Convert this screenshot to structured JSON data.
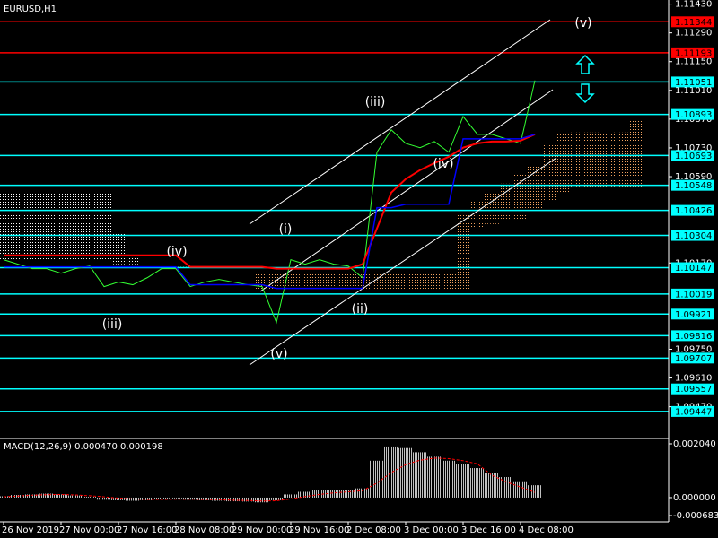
{
  "chart_data": [
    {
      "type": "line",
      "title": "EURUSD,H1",
      "categories": [
        "26 Nov 2019",
        null,
        null,
        null,
        "27 Nov 00:00",
        null,
        null,
        null,
        "27 Nov 16:00",
        null,
        null,
        null,
        "28 Nov 08:00",
        null,
        null,
        null,
        "29 Nov 00:00",
        null,
        null,
        null,
        "29 Nov 16:00",
        null,
        null,
        null,
        "2 Dec 08:00",
        null,
        null,
        null,
        "3 Dec 00:00",
        null,
        null,
        null,
        "3 Dec 16:00",
        null,
        null,
        null,
        "4 Dec 08:00",
        null,
        null,
        null,
        null,
        null,
        null,
        null,
        null
      ],
      "ylim": [
        1.0932,
        1.1145
      ],
      "yticks": [
        {
          "value": 1.1143,
          "label": "1.11430"
        },
        {
          "value": 1.1129,
          "label": "1.11290"
        },
        {
          "value": 1.1115,
          "label": "1.11150"
        },
        {
          "value": 1.1101,
          "label": "1.11010"
        },
        {
          "value": 1.1087,
          "label": "1.10870"
        },
        {
          "value": 1.1073,
          "label": "1.10730"
        },
        {
          "value": 1.1059,
          "label": "1.10590"
        },
        {
          "value": 1.1017,
          "label": "1.10170"
        },
        {
          "value": 1.0975,
          "label": "1.09750"
        },
        {
          "value": 1.0961,
          "label": "1.09610"
        },
        {
          "value": 1.0947,
          "label": "1.09470"
        }
      ],
      "grid": false,
      "series": [
        {
          "color": "#33ff33",
          "width": 1,
          "values": [
            1.10186,
            1.10164,
            1.10142,
            1.10142,
            1.1012,
            1.10142,
            1.10155,
            1.10055,
            1.10077,
            1.10064,
            1.10098,
            1.10142,
            1.10142,
            1.10055,
            1.10077,
            1.1009,
            1.10077,
            1.10064,
            1.10055,
            1.0988,
            1.10186,
            1.10164,
            1.10186,
            1.10164,
            1.10155,
            1.10098,
            1.10709,
            1.10818,
            1.10752,
            1.10731,
            1.10761,
            1.10709,
            1.10883,
            1.10796,
            1.10796,
            1.10774,
            1.10752,
            1.11058,
            null,
            null,
            null,
            null,
            null,
            null,
            null
          ]
        },
        {
          "color": "#ff0000",
          "width": 2,
          "values": [
            1.10207,
            1.10207,
            1.10207,
            1.10207,
            1.10207,
            1.10207,
            1.10207,
            1.10207,
            1.10207,
            1.10207,
            1.10207,
            1.10207,
            1.10207,
            1.10151,
            1.10151,
            1.10151,
            1.10151,
            1.10151,
            1.10151,
            1.10142,
            1.10142,
            1.10142,
            1.10142,
            1.10142,
            1.10142,
            1.10164,
            1.10338,
            1.10513,
            1.10578,
            1.10622,
            1.10656,
            1.10687,
            1.10731,
            1.10752,
            1.10761,
            1.10761,
            1.10765,
            1.10796,
            null,
            null,
            null,
            null,
            null,
            null,
            null
          ]
        },
        {
          "color": "#0000ff",
          "width": 1.5,
          "values": [
            1.10151,
            1.10151,
            1.10151,
            1.10151,
            1.10151,
            1.10151,
            1.10151,
            1.10151,
            1.10151,
            1.10151,
            1.10151,
            1.10151,
            1.10151,
            1.10064,
            1.10064,
            1.10064,
            1.10064,
            1.10064,
            1.10064,
            1.10046,
            1.10046,
            1.10046,
            1.10046,
            1.10046,
            1.10046,
            1.10046,
            1.10439,
            1.10439,
            1.10456,
            1.10456,
            1.10456,
            1.10456,
            1.10774,
            1.10774,
            1.10774,
            1.10774,
            1.10774,
            1.10796,
            null,
            null,
            null,
            null,
            null,
            null,
            null
          ]
        }
      ],
      "cloud": {
        "up_color": "#ffffff",
        "down_color": "#f4a460",
        "span_a": [
          1.10513,
          1.10513,
          1.10513,
          1.10513,
          1.10513,
          1.10513,
          1.10513,
          1.10513,
          1.10316,
          1.10207,
          1.10151,
          1.10151,
          1.10151,
          1.10151,
          1.10151,
          1.10151,
          1.10151,
          1.10151,
          1.10033,
          1.10033,
          1.10033,
          1.10033,
          1.10033,
          1.10033,
          1.10033,
          1.10033,
          1.10033,
          1.10033,
          1.10033,
          1.10033,
          1.10033,
          1.10033,
          1.10033,
          1.10338,
          1.1036,
          1.10369,
          1.10382,
          1.10404,
          1.10469,
          1.10513,
          1.10534,
          1.10534,
          1.10534,
          1.10534,
          1.10534
        ],
        "span_b": [
          1.10186,
          1.10186,
          1.10186,
          1.10186,
          1.10186,
          1.10186,
          1.10186,
          1.10186,
          1.10164,
          1.10164,
          1.10142,
          1.10142,
          1.10142,
          1.10142,
          1.10142,
          1.10142,
          1.10142,
          1.10142,
          1.1012,
          1.1012,
          1.1012,
          1.1012,
          1.1012,
          1.1012,
          1.1012,
          1.1012,
          1.1012,
          1.1012,
          1.1012,
          1.1012,
          1.1012,
          1.1012,
          1.10404,
          1.10469,
          1.10513,
          1.10556,
          1.106,
          1.10643,
          1.10752,
          1.10796,
          1.10805,
          1.10805,
          1.10796,
          1.10805,
          1.10861
        ]
      },
      "levels": [
        {
          "value": 1.11344,
          "color": "#ff0000"
        },
        {
          "value": 1.11193,
          "color": "#ff0000"
        },
        {
          "value": 1.11051,
          "color": "#00ffff"
        },
        {
          "value": 1.10893,
          "color": "#00ffff"
        },
        {
          "value": 1.10693,
          "color": "#00ffff"
        },
        {
          "value": 1.10548,
          "color": "#00ffff"
        },
        {
          "value": 1.10426,
          "color": "#00ffff"
        },
        {
          "value": 1.10304,
          "color": "#00ffff"
        },
        {
          "value": 1.10147,
          "color": "#00ffff"
        },
        {
          "value": 1.10019,
          "color": "#00ffff"
        },
        {
          "value": 1.09921,
          "color": "#00ffff"
        },
        {
          "value": 1.09816,
          "color": "#00ffff"
        },
        {
          "value": 1.09707,
          "color": "#00ffff"
        },
        {
          "value": 1.09557,
          "color": "#00ffff"
        },
        {
          "value": 1.09447,
          "color": "#00ffff"
        }
      ],
      "annotations": [
        "(v)",
        "(iii)",
        "(iv)",
        "(i)",
        "(ii)",
        "(v)",
        "(iii)",
        "(iv)"
      ]
    },
    {
      "type": "bar",
      "label": "MACD(12,26,9) 0.000470 0.000198",
      "color": "#c0c0c0",
      "ylim": [
        -0.00092,
        0.00221
      ],
      "yticks": [
        {
          "value": 0.00204,
          "label": "0.002040"
        },
        {
          "value": 0,
          "label": "0.000000"
        },
        {
          "value": -0.000683,
          "label": "-0.000683"
        }
      ],
      "values": [
        5e-05,
        0.0001,
        0.00012,
        0.00015,
        0.00012,
        8e-05,
        3e-05,
        -8e-05,
        -0.0001,
        -0.00012,
        -0.0001,
        -5e-05,
        -3e-05,
        -8e-05,
        -0.0001,
        -0.00012,
        -0.00014,
        -0.00015,
        -0.00018,
        -0.0001,
        0.00012,
        0.00022,
        0.00028,
        0.0003,
        0.00028,
        0.00035,
        0.0014,
        0.00194,
        0.00188,
        0.00172,
        0.00155,
        0.0014,
        0.00128,
        0.00112,
        0.00095,
        0.00078,
        0.00062,
        0.00047
      ],
      "signal": {
        "color": "#ff0000",
        "values": [
          3e-05,
          6e-05,
          9e-05,
          0.00011,
          0.00012,
          0.0001,
          7e-05,
          3e-05,
          -2e-05,
          -5e-05,
          -7e-05,
          -7e-05,
          -6e-05,
          -6e-05,
          -7e-05,
          -8e-05,
          -0.0001,
          -0.00011,
          -0.00013,
          -0.00012,
          -5e-05,
          4e-05,
          0.00012,
          0.00018,
          0.00022,
          0.00026,
          0.00055,
          0.00095,
          0.00125,
          0.00142,
          0.0015,
          0.00148,
          0.0014,
          0.00128,
          0.00085,
          0.0006,
          0.0004,
          0.000198
        ]
      }
    }
  ]
}
